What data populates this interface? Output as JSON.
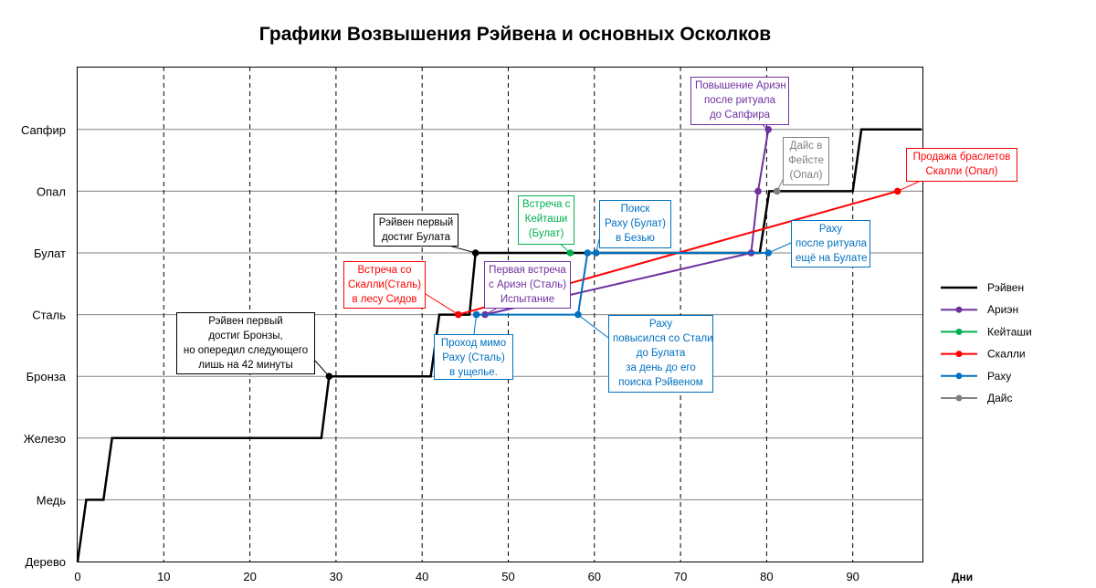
{
  "chart_data": {
    "type": "line",
    "title": "Графики Возвышения Рэйвена и основных Осколков",
    "xlabel": "Дни",
    "ylabel": "",
    "xlim": [
      0,
      98
    ],
    "xticks": [
      0,
      10,
      20,
      30,
      40,
      50,
      60,
      70,
      80,
      90
    ],
    "grid": {
      "x": "dashed-vertical",
      "y": "solid-horizontal"
    },
    "legend_position": "right",
    "categories": [
      "Дерево",
      "Медь",
      "Железо",
      "Бронза",
      "Сталь",
      "Булат",
      "Опал",
      "Сапфир"
    ],
    "colors": {
      "Рэйвен": "#000000",
      "Ариэн": "#7030A0",
      "Кейташи": "#00B050",
      "Скалли": "#FF0000",
      "Раху": "#0070C0",
      "Дайс": "#808080"
    },
    "series": [
      {
        "name": "Рэйвен",
        "markers": false,
        "x": [
          0,
          1,
          3,
          4,
          28.3,
          29.2,
          41,
          42,
          44,
          45.5,
          46.2,
          78.5,
          79.2,
          80.3,
          90,
          91,
          98
        ],
        "y": [
          0,
          1,
          1,
          2,
          2,
          3,
          3,
          4,
          4,
          4,
          5,
          5,
          5,
          6,
          6,
          7,
          7
        ]
      },
      {
        "name": "Ариэн",
        "markers": true,
        "x": [
          47.3,
          78.2,
          79,
          80.2
        ],
        "y": [
          4,
          5,
          6,
          7
        ]
      },
      {
        "name": "Кейташи",
        "markers": true,
        "x": [
          57.2
        ],
        "y": [
          5
        ]
      },
      {
        "name": "Скалли",
        "markers": true,
        "x": [
          44.2,
          95.2
        ],
        "y": [
          4,
          6
        ]
      },
      {
        "name": "Раху",
        "markers": true,
        "x": [
          46.3,
          58.1,
          59.2,
          60.2,
          80.2
        ],
        "y": [
          4,
          4,
          5,
          5,
          5
        ]
      },
      {
        "name": "Дайс",
        "markers": true,
        "x": [
          81.2
        ],
        "y": [
          6
        ]
      }
    ],
    "reiven_points": {
      "x": [
        29.2,
        46.2
      ],
      "y": [
        3,
        5
      ]
    },
    "annotations": [
      {
        "text": "Рэйвен первый\nдостиг Бронзы,\nно опередил следующего\nлишь на 42 минуты",
        "color": "#000000"
      },
      {
        "text": "Рэйвен первый\nдостиг Булата",
        "color": "#000000"
      },
      {
        "text": "Встреча со\nСкалли(Сталь)\nв лесу Сидов",
        "color": "#FF0000"
      },
      {
        "text": "Проход мимо\nРаху (Сталь)\nв ущелье.",
        "color": "#0070C0"
      },
      {
        "text": "Первая встреча\nс Ариэн (Сталь)\nИспытание",
        "color": "#7030A0"
      },
      {
        "text": "Встреча с\nКейташи\n(Булат)",
        "color": "#00B050"
      },
      {
        "text": "Поиск\nРаху (Булат)\nв Безью",
        "color": "#0070C0"
      },
      {
        "text": "Раху\nповысился со Стали\nдо Булата\nза день до его\nпоиска Рэйвеном",
        "color": "#0070C0"
      },
      {
        "text": "Повышение Ариэн\nпосле ритуала\nдо Сапфира",
        "color": "#7030A0"
      },
      {
        "text": "Дайс в\nФейсте\n(Опал)",
        "color": "#808080"
      },
      {
        "text": "Раху\nпосле ритуала\nещё на Булате",
        "color": "#0070C0"
      },
      {
        "text": "Продажа браслетов\nСкалли (Опал)",
        "color": "#FF0000"
      }
    ]
  }
}
